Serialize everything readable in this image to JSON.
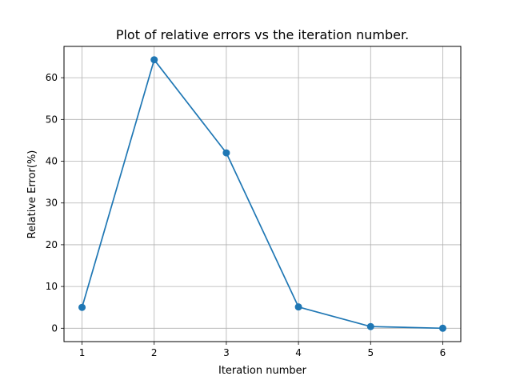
{
  "chart_data": {
    "type": "line",
    "title": "Plot of relative errors vs the iteration number.",
    "xlabel": "Iteration number",
    "ylabel": "Relative Error(%)",
    "x": [
      1,
      2,
      3,
      4,
      5,
      6
    ],
    "series": [
      {
        "values": [
          5.0,
          64.3,
          42.0,
          5.1,
          0.4,
          0.0
        ],
        "color": "#1f77b4",
        "marker": "circle"
      }
    ],
    "xticks": [
      1,
      2,
      3,
      4,
      5,
      6
    ],
    "yticks": [
      0,
      10,
      20,
      30,
      40,
      50,
      60
    ],
    "xlim": [
      0.75,
      6.25
    ],
    "ylim": [
      -3.2,
      67.5
    ],
    "grid": true
  }
}
